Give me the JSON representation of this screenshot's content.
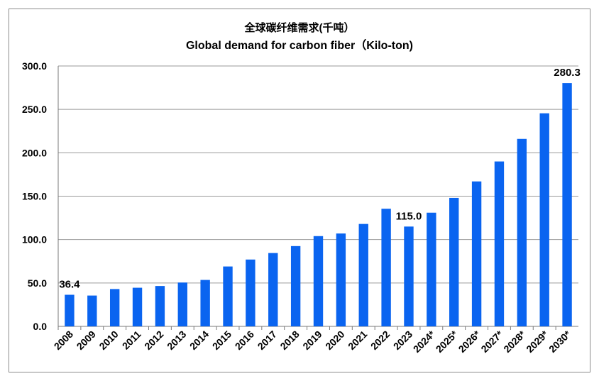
{
  "chart_data": {
    "type": "bar",
    "title": "全球碳纤维需求(千吨）",
    "subtitle": "Global demand  for carbon fiber（Kilo-ton)",
    "xlabel": "",
    "ylabel": "",
    "ylim": [
      0,
      300
    ],
    "yticks": [
      "0.0",
      "50.0",
      "100.0",
      "150.0",
      "200.0",
      "250.0",
      "300.0"
    ],
    "grid": true,
    "bar_color": "#0a64f0",
    "categories": [
      "2008",
      "2009",
      "2010",
      "2011",
      "2012",
      "2013",
      "2014",
      "2015",
      "2016",
      "2017",
      "2018",
      "2019",
      "2020",
      "2021",
      "2022",
      "2023",
      "2024*",
      "2025*",
      "2026*",
      "2027*",
      "2028*",
      "2029*",
      "2030*"
    ],
    "values": [
      36.4,
      35.5,
      43.0,
      44.5,
      46.5,
      50.5,
      53.5,
      69.0,
      77.0,
      84.5,
      92.5,
      104.0,
      107.0,
      118.0,
      135.5,
      115.0,
      131.0,
      148.0,
      167.0,
      190.0,
      216.0,
      245.5,
      280.3
    ],
    "data_labels": [
      {
        "category": "2008",
        "text": "36.4"
      },
      {
        "category": "2023",
        "text": "115.0"
      },
      {
        "category": "2030*",
        "text": "280.3"
      }
    ]
  }
}
